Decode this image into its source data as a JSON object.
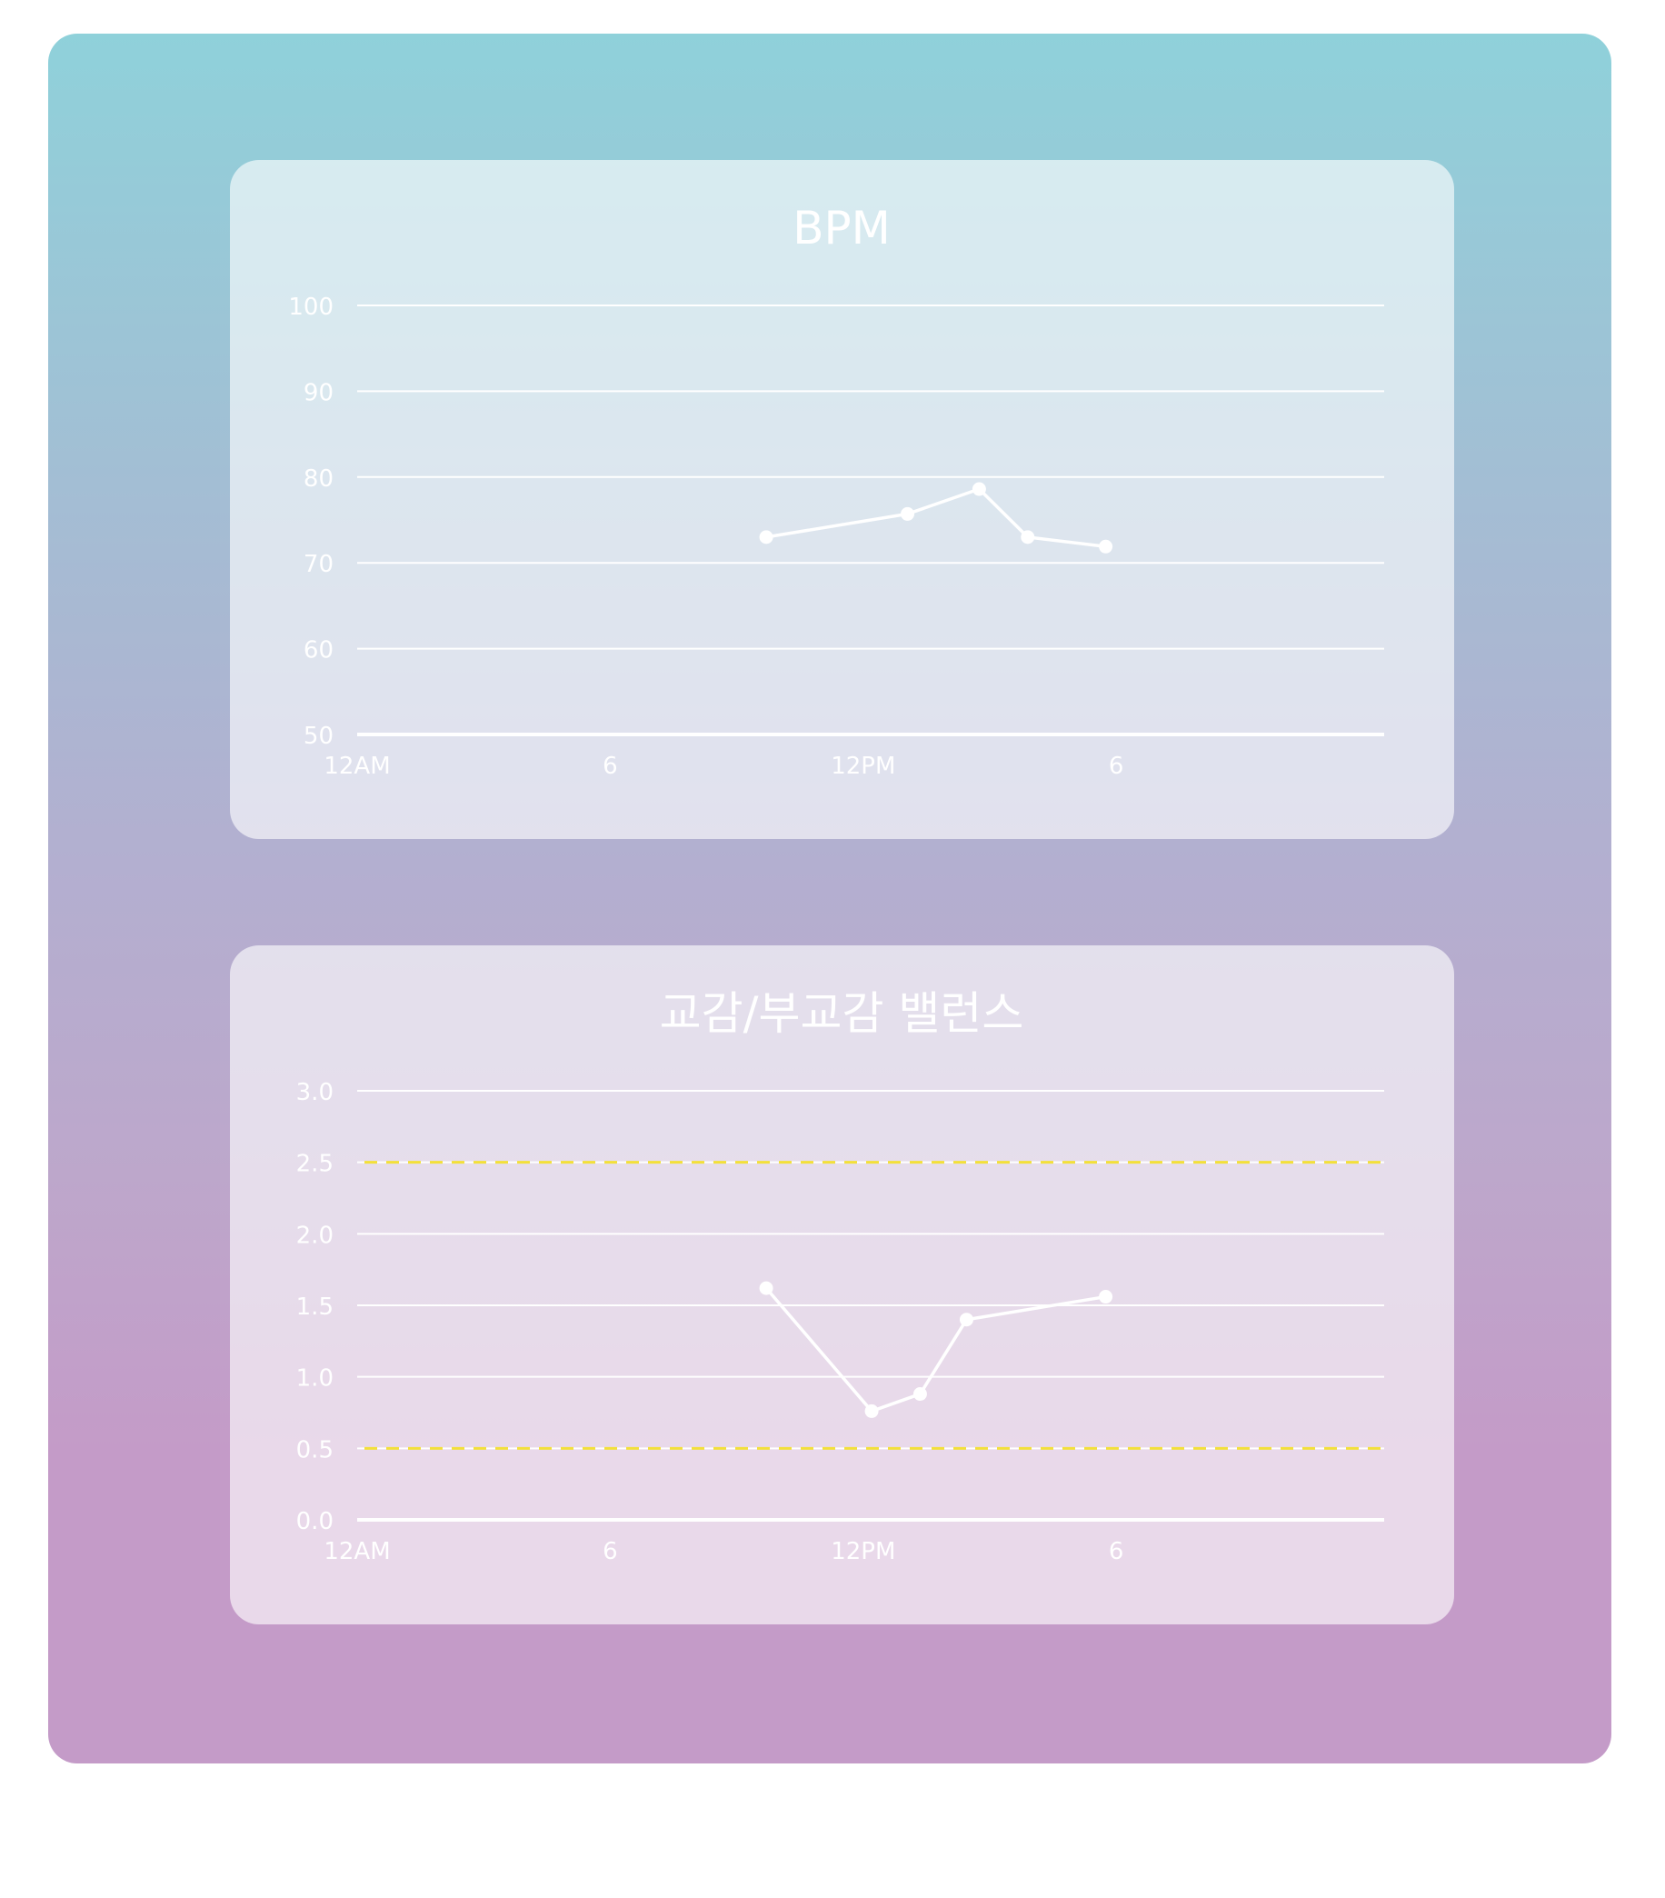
{
  "chart_data": [
    {
      "type": "line",
      "title": "BPM",
      "xlabel": "",
      "ylabel": "",
      "x_range_hours": [
        0,
        24
      ],
      "x_ticks": [
        {
          "hour": 0,
          "label": "12AM"
        },
        {
          "hour": 6,
          "label": "6"
        },
        {
          "hour": 12,
          "label": "12PM"
        },
        {
          "hour": 18,
          "label": "6"
        }
      ],
      "ylim": [
        50,
        100
      ],
      "y_ticks": [
        {
          "value": 100,
          "label": "100"
        },
        {
          "value": 90,
          "label": "90"
        },
        {
          "value": 80,
          "label": "80"
        },
        {
          "value": 70,
          "label": "70"
        },
        {
          "value": 60,
          "label": "60"
        },
        {
          "value": 50,
          "label": "50"
        }
      ],
      "grid": true,
      "series": [
        {
          "points": [
            {
              "hour": 9.7,
              "value": 73.0
            },
            {
              "hour": 13.05,
              "value": 75.7
            },
            {
              "hour": 14.75,
              "value": 78.6
            },
            {
              "hour": 15.9,
              "value": 73.0
            },
            {
              "hour": 17.75,
              "value": 71.9
            }
          ]
        }
      ],
      "reference_lines": []
    },
    {
      "type": "line",
      "title": "교감/부교감 밸런스",
      "xlabel": "",
      "ylabel": "",
      "x_range_hours": [
        0,
        24
      ],
      "x_ticks": [
        {
          "hour": 0,
          "label": "12AM"
        },
        {
          "hour": 6,
          "label": "6"
        },
        {
          "hour": 12,
          "label": "12PM"
        },
        {
          "hour": 18,
          "label": "6"
        }
      ],
      "ylim": [
        0,
        3
      ],
      "y_ticks": [
        {
          "value": 3.0,
          "label": "3.0"
        },
        {
          "value": 2.5,
          "label": "2.5"
        },
        {
          "value": 2.0,
          "label": "2.0"
        },
        {
          "value": 1.5,
          "label": "1.5"
        },
        {
          "value": 1.0,
          "label": "1.0"
        },
        {
          "value": 0.5,
          "label": "0.5"
        },
        {
          "value": 0.0,
          "label": "0.0"
        }
      ],
      "grid": true,
      "series": [
        {
          "points": [
            {
              "hour": 9.7,
              "value": 1.62
            },
            {
              "hour": 12.2,
              "value": 0.76
            },
            {
              "hour": 13.35,
              "value": 0.88
            },
            {
              "hour": 14.45,
              "value": 1.4
            },
            {
              "hour": 17.75,
              "value": 1.56
            }
          ]
        }
      ],
      "reference_lines": [
        {
          "value": 2.5,
          "color": "#f3e03a",
          "style": "dashed"
        },
        {
          "value": 0.5,
          "color": "#f3e03a",
          "style": "dashed"
        }
      ]
    }
  ]
}
